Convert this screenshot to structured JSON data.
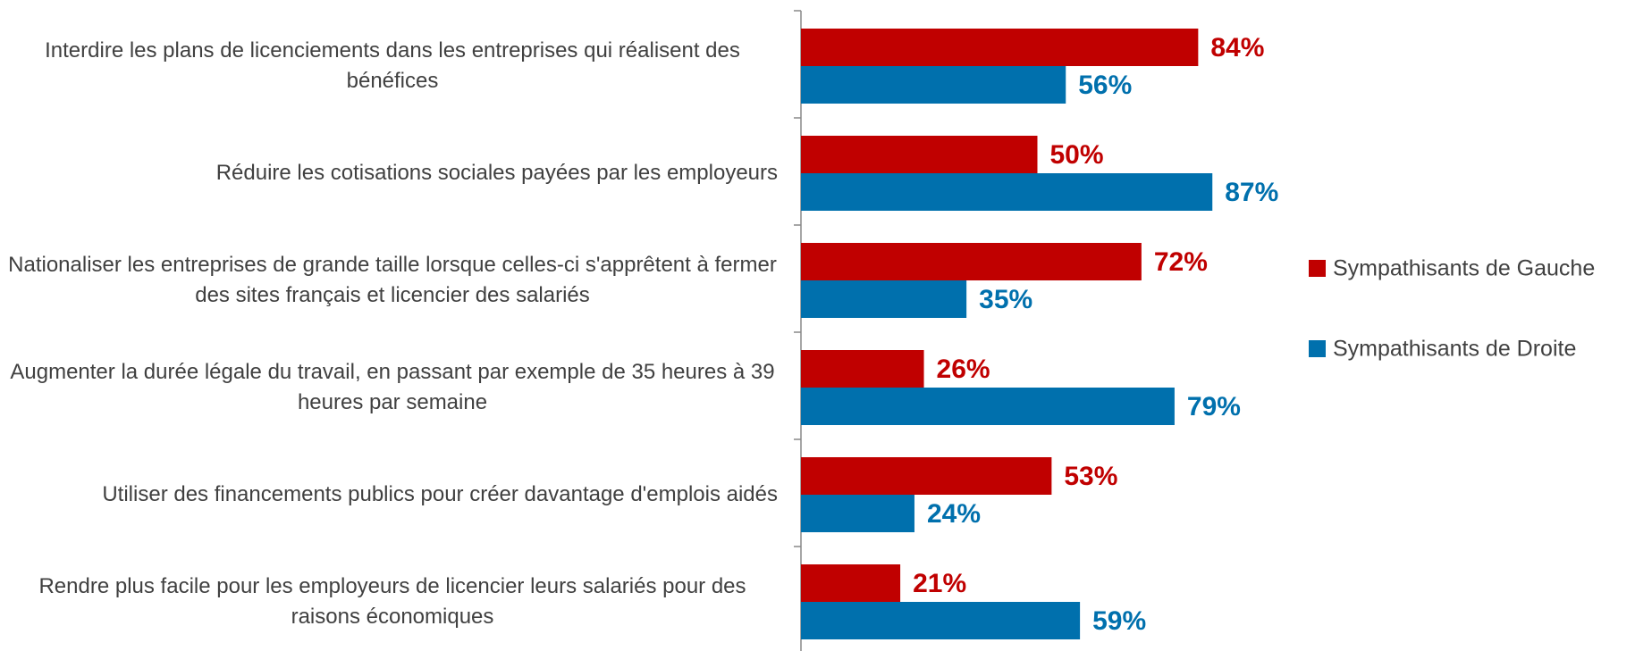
{
  "chart_data": {
    "type": "bar",
    "orientation": "horizontal",
    "categories": [
      "Interdire les plans de licenciements dans les entreprises qui réalisent des bénéfices",
      "Réduire les cotisations sociales payées par les employeurs",
      "Nationaliser les entreprises de grande taille lorsque celles-ci s'apprêtent à fermer des sites français et licencier des salariés",
      "Augmenter la durée légale du travail, en passant par exemple de 35 heures à 39 heures par semaine",
      "Utiliser des financements publics pour créer davantage d'emplois aidés",
      "Rendre plus facile pour les employeurs de licencier leurs salariés pour des raisons économiques"
    ],
    "series": [
      {
        "name": "Sympathisants de Gauche",
        "color": "#c00000",
        "values": [
          84,
          50,
          72,
          26,
          53,
          21
        ],
        "value_labels": [
          "84%",
          "50%",
          "72%",
          "26%",
          "53%",
          "21%"
        ]
      },
      {
        "name": "Sympathisants de Droite",
        "color": "#0070ad",
        "values": [
          56,
          87,
          35,
          79,
          24,
          59
        ],
        "value_labels": [
          "56%",
          "87%",
          "35%",
          "79%",
          "24%",
          "59%"
        ]
      }
    ],
    "legend": "right"
  }
}
